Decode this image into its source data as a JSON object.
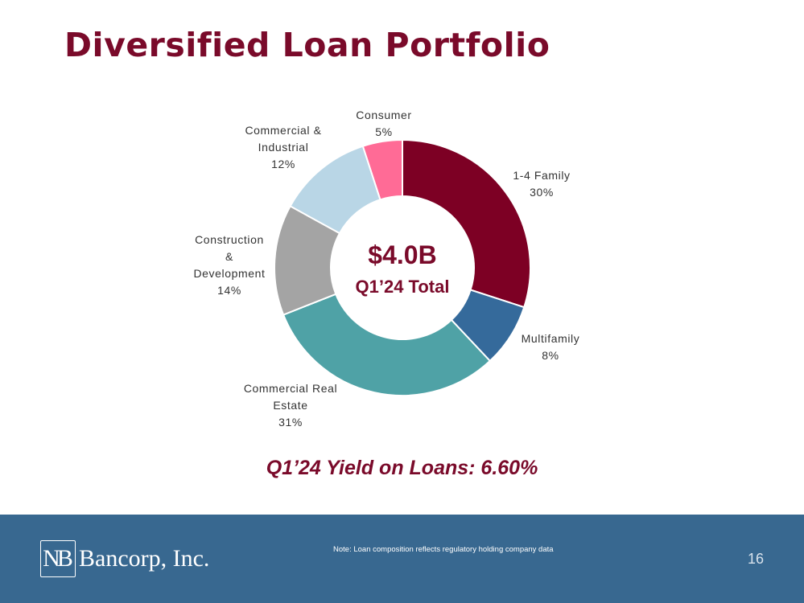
{
  "slide": {
    "title": "Diversified Loan Portfolio",
    "yield_text": "Q1’24 Yield on Loans: 6.60%",
    "center_value": "$4.0B",
    "center_caption": "Q1’24 Total"
  },
  "chart_data": {
    "type": "pie",
    "style": "donut",
    "title": "",
    "categories": [
      "1-4 Family",
      "Multifamily",
      "Commercial Real Estate",
      "Construction & Development",
      "Commercial & Industrial",
      "Consumer"
    ],
    "values": [
      30,
      8,
      31,
      14,
      12,
      5
    ],
    "unit": "%",
    "value_labels": [
      "30%",
      "8%",
      "31%",
      "14%",
      "12%",
      "5%"
    ],
    "label_lines": [
      [
        "1-4 Family"
      ],
      [
        "Multifamily"
      ],
      [
        "Commercial Real",
        "Estate"
      ],
      [
        "Construction",
        "&",
        "Development"
      ],
      [
        "Commercial &",
        "Industrial"
      ],
      [
        "Consumer"
      ]
    ],
    "colors": [
      "#7d0024",
      "#356a9b",
      "#4fa2a6",
      "#a4a4a4",
      "#b9d6e6",
      "#ff6b96"
    ]
  },
  "footer": {
    "logo_mark": "NB",
    "logo_text": "Bancorp, Inc.",
    "note": "Note: Loan composition reflects regulatory holding company data",
    "page_number": "16"
  }
}
